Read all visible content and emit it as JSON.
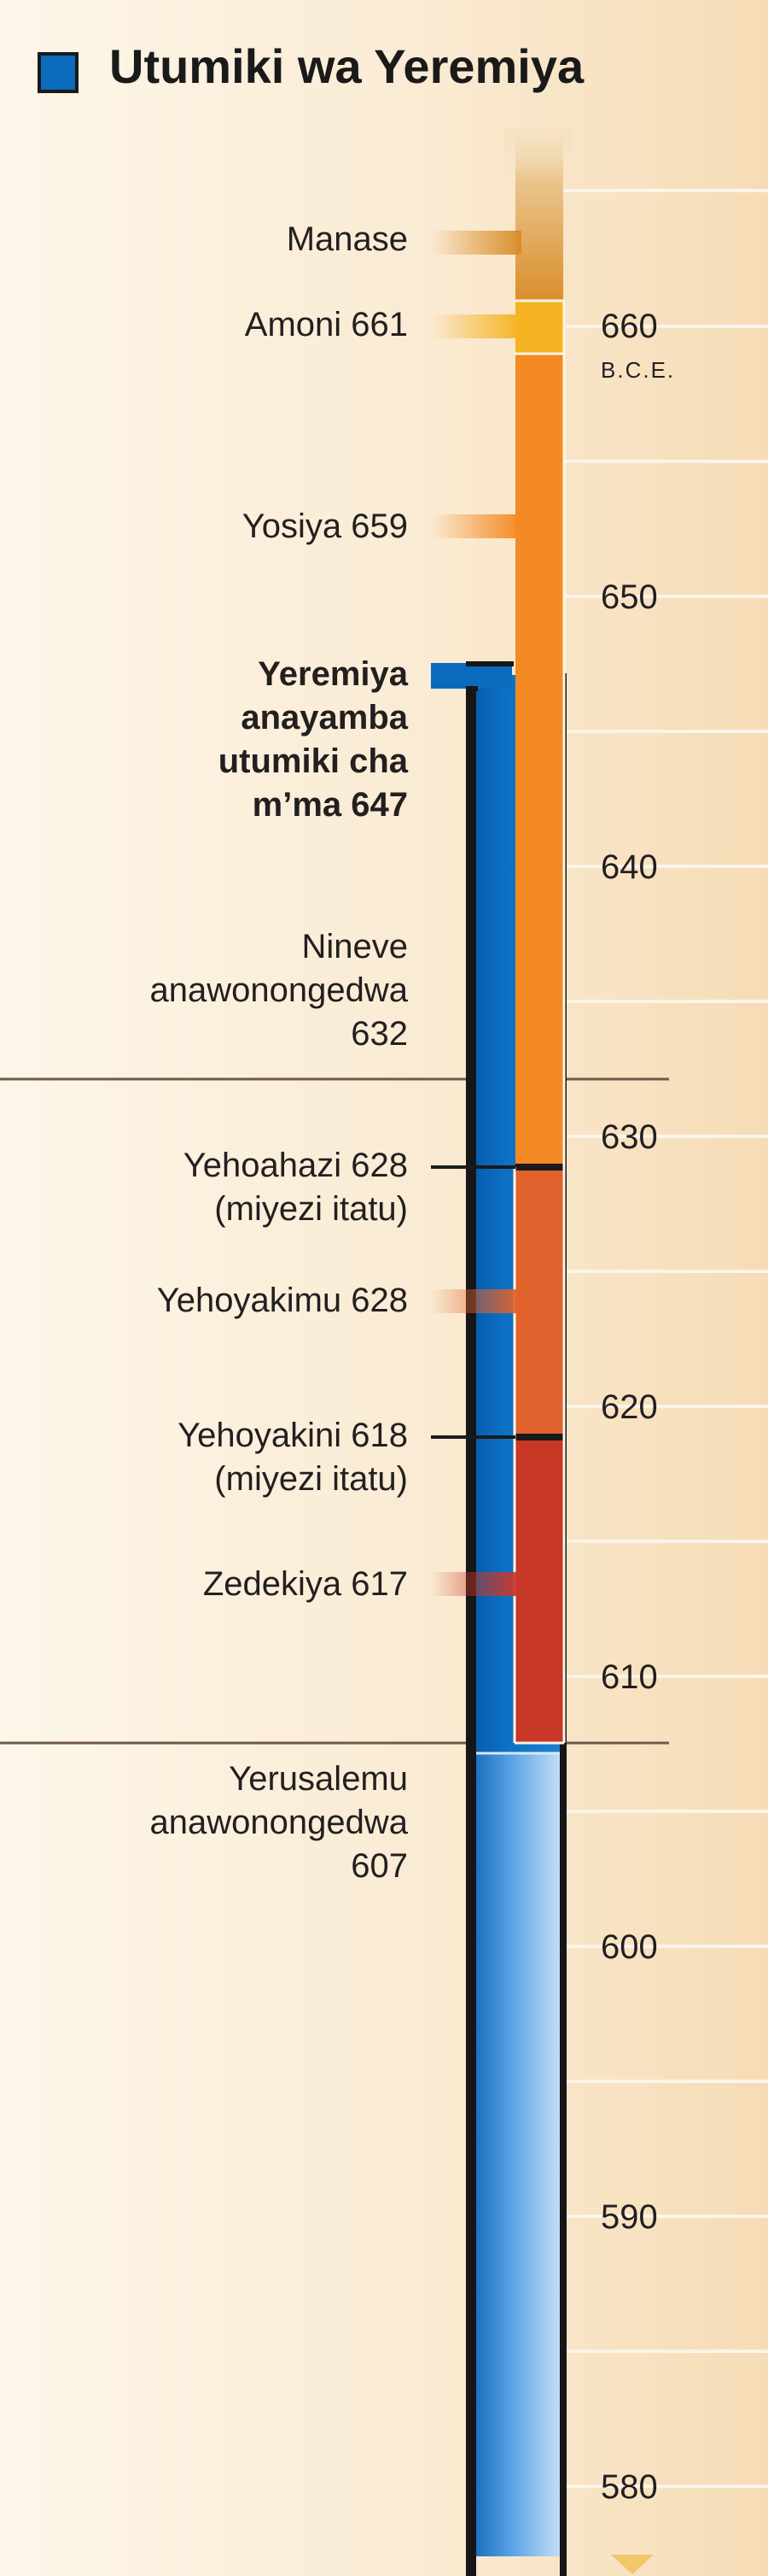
{
  "title": "Utumiki wa Yeremiya",
  "legend_color": "#0a6bbd",
  "era": "B.C.E.",
  "ticks": [
    "660",
    "650",
    "640",
    "630",
    "620",
    "610",
    "600",
    "590",
    "580"
  ],
  "events": {
    "manase": "Manase",
    "amoni": "Amoni 661",
    "yosiya": "Yosiya 659",
    "yeremiya": [
      "Yeremiya",
      "anayamba",
      "utumiki cha",
      "m’ma 647"
    ],
    "nineve": [
      "Nineve",
      "anawonongedwa",
      "632"
    ],
    "yehoahazi": [
      "Yehoahazi 628",
      "(miyezi itatu)"
    ],
    "yehoyakimu": "Yehoyakimu 628",
    "yehoyakini": [
      "Yehoyakini 618",
      "(miyezi itatu)"
    ],
    "zedekiya": "Zedekiya 617",
    "yerusalemu": [
      "Yerusalemu",
      "anawonongedwa",
      "607"
    ]
  },
  "reign_colors": {
    "manase": "#d98e2b",
    "amoni": "#f6b323",
    "yosiya": "#f38a23",
    "yehoahazi_yehoyakimu": "#e0622c",
    "yehoyakini_zedekiya": "#c93727"
  }
}
